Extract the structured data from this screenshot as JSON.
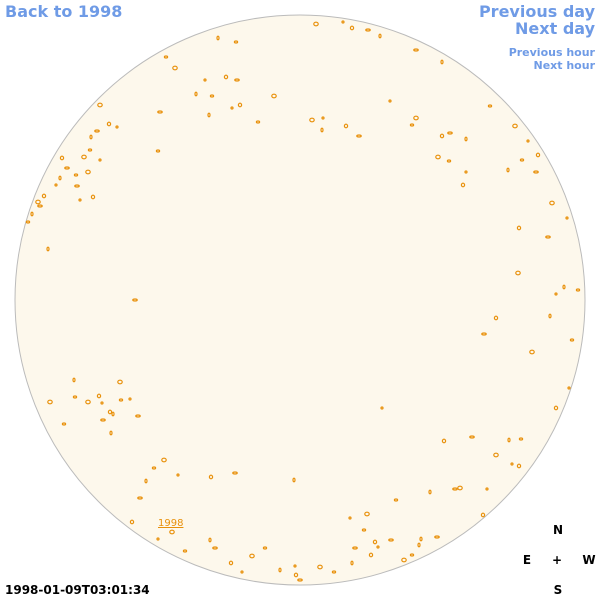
{
  "nav": {
    "back": "Back to 1998",
    "previous_day": "Previous day",
    "next_day": "Next day",
    "previous_hour": "Previous hour",
    "next_hour": "Next hour"
  },
  "timestamp": "1998-01-09T03:01:34",
  "compass": {
    "north": "N",
    "east": "E",
    "center": "+",
    "west": "W",
    "south": "S"
  },
  "disc_label": "1998"
}
